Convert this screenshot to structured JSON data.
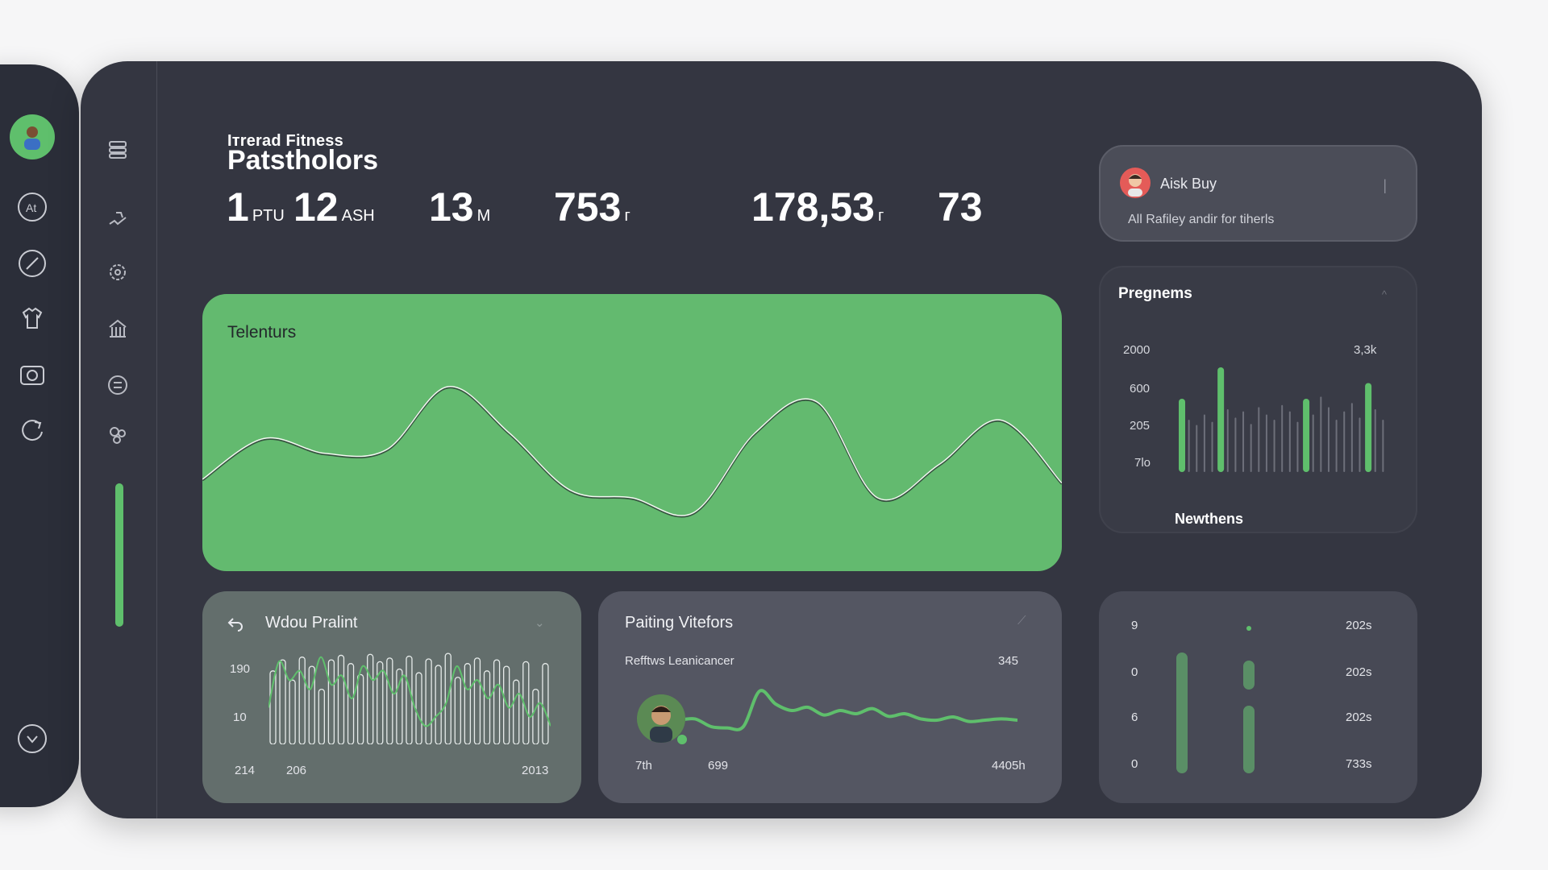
{
  "rail": {
    "icons": [
      "avatar-icon",
      "at-icon",
      "compass-icon",
      "shirt-icon",
      "camera-icon",
      "refresh-icon",
      "chevron-down-icon"
    ]
  },
  "sidebar2": {
    "icons": [
      "list-icon",
      "run-icon",
      "gear-icon",
      "building-icon",
      "swap-icon",
      "bubbles-icon"
    ]
  },
  "brand": {
    "subtitle": "Iтrerad Fitness",
    "title": "Patstholors"
  },
  "stats": [
    {
      "value": "1",
      "unit": "PTU"
    },
    {
      "value": "12",
      "unit": "ASH"
    },
    {
      "value": "13",
      "unit": "M"
    },
    {
      "value": "753",
      "unit": "г"
    },
    {
      "value": "178,53",
      "unit": "г"
    },
    {
      "value": "73",
      "unit": ""
    }
  ],
  "hero": {
    "title": "Telenturs"
  },
  "user_card": {
    "name": "Aisk Buy",
    "subtitle": "All Rafiley andir for tiherls",
    "more": "|"
  },
  "progress_card": {
    "title": "Pregnems",
    "caret": "^",
    "footer": "Newthens",
    "left_ticks": [
      "2000",
      "600",
      "205",
      "7lo"
    ],
    "right_tick": "3,3k"
  },
  "card_workout": {
    "title": "Wdou Pralint",
    "caret": "⌄",
    "y_ticks": [
      "190",
      "10"
    ],
    "x_labels": [
      "214",
      "206",
      "2013"
    ]
  },
  "card_painting": {
    "title": "Paiting Vitefors",
    "caret": "⟋",
    "subtitle": "Refftws Leanicancer",
    "subtitle_value": "345",
    "x_labels": [
      "7th",
      "699",
      "4405h"
    ]
  },
  "card_stats": {
    "left_labels": [
      "9",
      "0",
      "6",
      "0"
    ],
    "right_labels": [
      "202s",
      "202s",
      "202s",
      "733s"
    ]
  },
  "colors": {
    "accent_green": "#5fbf6c",
    "panel": "#343641",
    "rail": "#2b2e39"
  },
  "chart_data": [
    {
      "type": "line",
      "title": "Telenturs",
      "series": [
        {
          "values": [
            30,
            52,
            44,
            46,
            80,
            55,
            24,
            20,
            12,
            55,
            72,
            20,
            38,
            62,
            28
          ]
        }
      ],
      "grid": false
    },
    {
      "type": "bar",
      "title": "Pregnems",
      "ytick_labels": [
        "2000",
        "600",
        "205",
        "7lo"
      ],
      "series": [
        {
          "values": [
            0.7,
            0.5,
            0.45,
            0.55,
            0.48,
            1.0,
            0.6,
            0.52,
            0.58,
            0.46,
            0.62,
            0.55,
            0.5,
            0.64,
            0.58,
            0.48,
            0.7,
            0.55,
            0.72,
            0.62,
            0.5,
            0.58,
            0.66,
            0.52,
            0.85,
            0.6,
            0.5
          ]
        }
      ]
    },
    {
      "type": "bar",
      "title": "Wdou Pralint",
      "ytick_labels": [
        "190",
        "10"
      ],
      "series": [
        {
          "values": [
            0.8,
            0.92,
            0.7,
            0.95,
            0.85,
            0.6,
            0.92,
            0.97,
            0.88,
            0.76,
            0.98,
            0.9,
            0.94,
            0.82,
            0.96,
            0.78,
            0.93,
            0.86,
            0.99,
            0.73,
            0.88,
            0.94,
            0.8,
            0.92,
            0.85,
            0.7,
            0.9,
            0.6,
            0.88
          ]
        }
      ],
      "line": [
        0.4,
        0.9,
        0.7,
        0.8,
        0.6,
        0.95,
        0.65,
        0.75,
        0.5,
        0.85,
        0.7,
        0.8,
        0.55,
        0.75,
        0.4,
        0.2,
        0.3,
        0.45,
        0.85,
        0.6,
        0.7,
        0.5,
        0.65,
        0.4,
        0.55,
        0.3,
        0.45,
        0.2
      ]
    },
    {
      "type": "line",
      "title": "Paiting Vitefors",
      "series": [
        {
          "values": [
            0.4,
            0.42,
            0.3,
            0.28,
            0.3,
            0.85,
            0.65,
            0.55,
            0.6,
            0.48,
            0.55,
            0.5,
            0.58,
            0.46,
            0.5,
            0.42,
            0.4,
            0.45,
            0.38,
            0.4,
            0.42,
            0.4
          ]
        }
      ]
    },
    {
      "type": "bar",
      "series": [
        {
          "values": [
            0.0,
            1.0
          ]
        },
        {
          "values": [
            0.08,
            0.3,
            0.55
          ]
        }
      ]
    }
  ]
}
